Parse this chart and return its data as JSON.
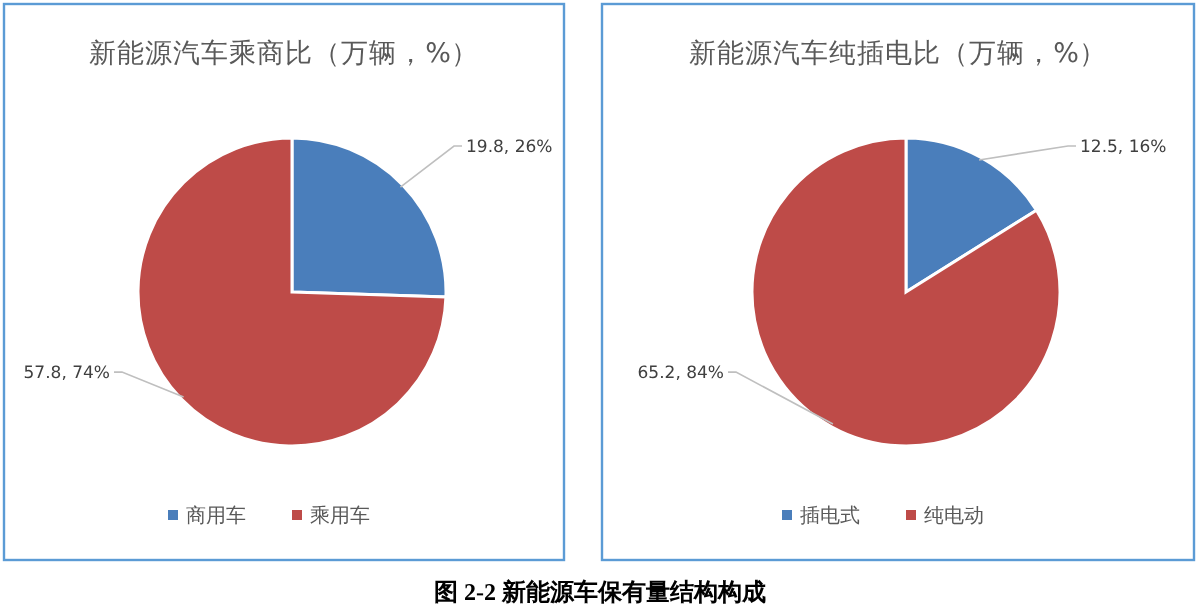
{
  "chart_data": [
    {
      "type": "pie",
      "title": "新能源汽车乘商比（万辆，%）",
      "categories": [
        "商用车",
        "乘用车"
      ],
      "values": [
        19.8,
        57.8
      ],
      "colors": [
        "#4a7ebb",
        "#be4b48"
      ],
      "value_labels": [
        "19.8, 26%",
        "57.8, 74%"
      ],
      "legend": "bottom",
      "annotations": [
        "图 2-2 新能源车保有量结构构成"
      ]
    },
    {
      "type": "pie",
      "title": "新能源汽车纯插电比（万辆，%）",
      "categories": [
        "插电式",
        "纯电动"
      ],
      "values": [
        12.5,
        65.2
      ],
      "colors": [
        "#4a7ebb",
        "#be4b48"
      ],
      "value_labels": [
        "12.5, 16%",
        "65.2, 84%"
      ],
      "legend": "bottom"
    }
  ]
}
